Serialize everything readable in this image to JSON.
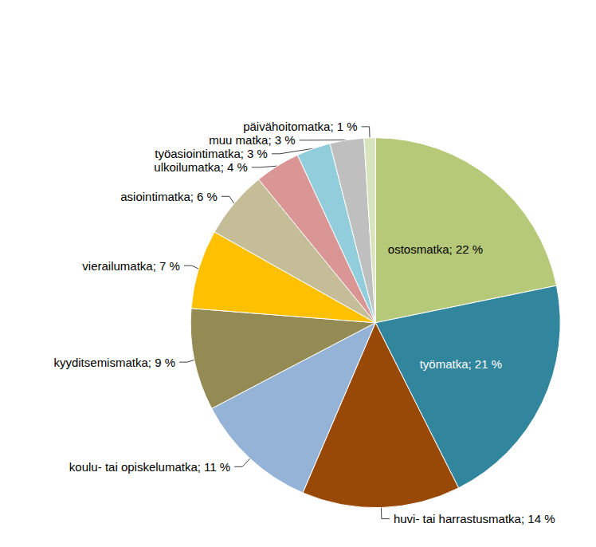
{
  "chart_data": {
    "type": "pie",
    "categories": [
      "ostosmatka",
      "työmatka",
      "huvi- tai harrastusmatka",
      "koulu- tai opiskelumatka",
      "kyyditsemismatka",
      "vierailumatka",
      "asiointimatka",
      "ulkoilumatka",
      "työasiointimatka",
      "muu matka",
      "päivähoitomatka"
    ],
    "values": [
      22,
      21,
      14,
      11,
      9,
      7,
      6,
      4,
      3,
      3,
      1
    ],
    "value_labels": [
      "ostosmatka; 22 %",
      "työmatka; 21 %",
      "huvi- tai harrastusmatka; 14 %",
      "koulu- tai opiskelumatka; 11 %",
      "kyyditsemismatka; 9 %",
      "vierailumatka; 7 %",
      "asiointimatka; 6 %",
      "ulkoilumatka; 4 %",
      "työasiointimatka; 3 %",
      "muu matka; 3 %",
      "päivähoitomatka; 1 %"
    ],
    "colors": [
      "#b6c978",
      "#31859c",
      "#984807",
      "#95b3d7",
      "#948a54",
      "#ffc000",
      "#c4bd97",
      "#d99694",
      "#92cddc",
      "#bfbfbf",
      "#d7e4bd"
    ],
    "data_labels": true,
    "legend": false
  }
}
